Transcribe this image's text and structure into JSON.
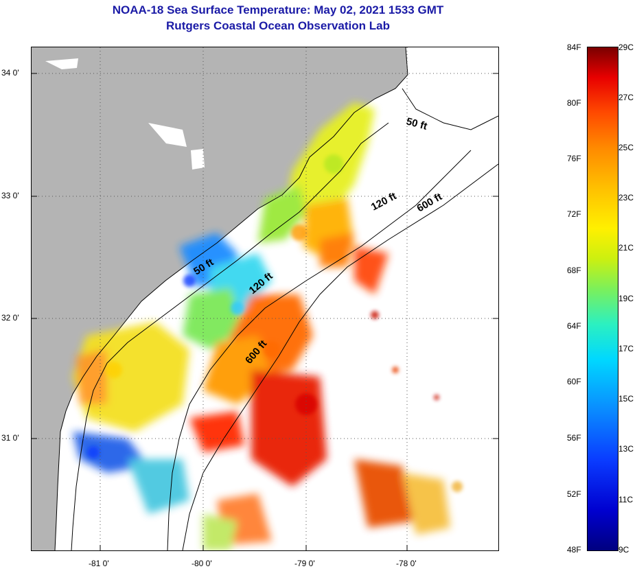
{
  "title": {
    "line1": "NOAA-18 Sea Surface Temperature:  May 02, 2021 1533 GMT",
    "line2": "Rutgers Coastal Ocean Observation Lab"
  },
  "map": {
    "lon_labels": [
      "-81 0'",
      "-80 0'",
      "-79 0'",
      "-78 0'"
    ],
    "lat_labels": [
      "34 0'",
      "33 0'",
      "32 0'",
      "31 0'"
    ],
    "isobaths": {
      "a": "50 ft",
      "b": "120 ft",
      "c": "600 ft",
      "d": "50 ft",
      "e": "120 ft",
      "f": "600 ft"
    }
  },
  "colorbar": {
    "fahrenheit": [
      "84F",
      "80F",
      "76F",
      "72F",
      "68F",
      "64F",
      "60F",
      "56F",
      "52F",
      "48F"
    ],
    "celsius": [
      "29C",
      "27C",
      "25C",
      "23C",
      "21C",
      "19C",
      "17C",
      "15C",
      "13C",
      "11C",
      "9C"
    ]
  },
  "colors": {
    "title": "#1a1aa6",
    "land": "#b4b4b4"
  }
}
